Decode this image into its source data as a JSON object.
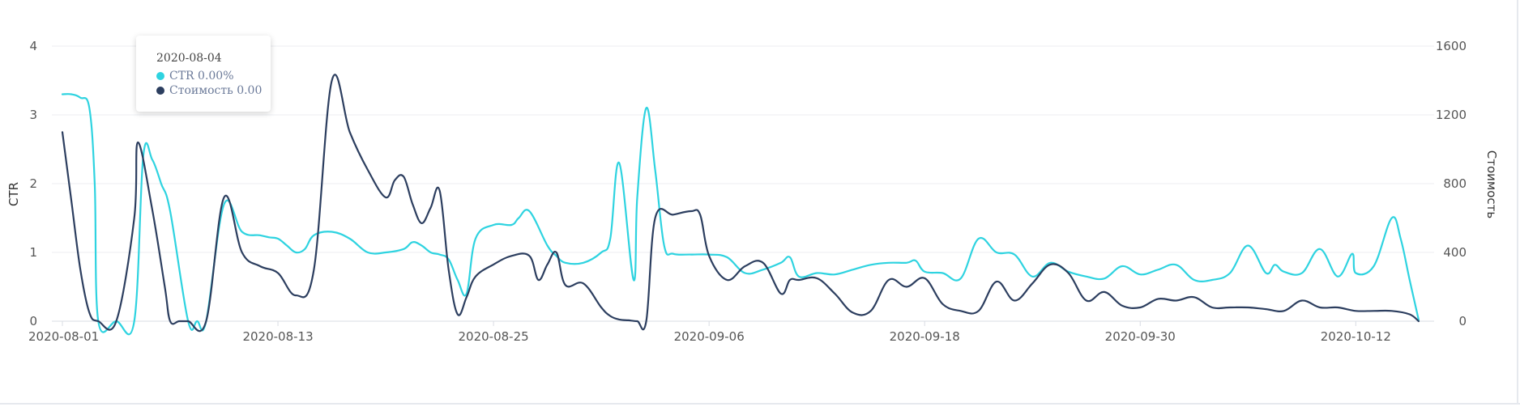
{
  "chart_data": {
    "type": "line",
    "x_range": [
      "2020-08-01",
      "2020-10-16"
    ],
    "x_ticks": [
      "2020-08-01",
      "2020-08-13",
      "2020-08-25",
      "2020-09-06",
      "2020-09-18",
      "2020-09-30",
      "2020-10-12"
    ],
    "y_left": {
      "label": "CTR",
      "range": [
        0,
        4
      ],
      "ticks": [
        "0",
        "1",
        "2",
        "3",
        "4"
      ]
    },
    "y_right": {
      "label": "Стоимость",
      "range": [
        0,
        1600
      ],
      "ticks": [
        "0",
        "400",
        "800",
        "1200",
        "1600"
      ]
    },
    "grid": true,
    "series": [
      {
        "name": "CTR",
        "axis": "left",
        "color": "#2ed3e0",
        "x": [
          0,
          0.5,
          1,
          1.5,
          1.8,
          2,
          3,
          4,
          4.5,
          5,
          5.5,
          6,
          7,
          7.5,
          8,
          9,
          10,
          11,
          11.5,
          12,
          12.5,
          13,
          13.5,
          14,
          15,
          16,
          17,
          18,
          19,
          19.5,
          20,
          20.5,
          21,
          21.5,
          22,
          22.5,
          23,
          24,
          25,
          25.4,
          26,
          27,
          27.5,
          28,
          29,
          30,
          30.5,
          31,
          31.8,
          32,
          32.5,
          33,
          33.5,
          34,
          35,
          36,
          37,
          38,
          39,
          40,
          40.5,
          41,
          42,
          43,
          44,
          45,
          46,
          47,
          47.5,
          48,
          49,
          50,
          51,
          52,
          53,
          54,
          55,
          56,
          57,
          58,
          59,
          60,
          61,
          62,
          63,
          64,
          65,
          66,
          67,
          67.5,
          68,
          69,
          70,
          71,
          71.8,
          72,
          73,
          74,
          74.5,
          75,
          75.5
        ],
        "values": [
          3.3,
          3.3,
          3.25,
          3.1,
          2.0,
          0,
          0,
          0,
          2.4,
          2.35,
          2.0,
          1.6,
          0,
          0,
          0,
          1.7,
          1.3,
          1.25,
          1.22,
          1.2,
          1.1,
          1.0,
          1.05,
          1.25,
          1.3,
          1.2,
          1.0,
          1.0,
          1.05,
          1.15,
          1.1,
          1.0,
          0.97,
          0.9,
          0.6,
          0.4,
          1.2,
          1.4,
          1.4,
          1.5,
          1.6,
          1.1,
          0.95,
          0.85,
          0.85,
          1.0,
          1.2,
          2.3,
          0.6,
          1.8,
          3.1,
          2.2,
          1.1,
          0.98,
          0.97,
          0.97,
          0.93,
          0.7,
          0.75,
          0.85,
          0.93,
          0.65,
          0.7,
          0.68,
          0.75,
          0.82,
          0.85,
          0.85,
          0.88,
          0.72,
          0.7,
          0.62,
          1.2,
          1.0,
          0.97,
          0.65,
          0.85,
          0.72,
          0.65,
          0.62,
          0.8,
          0.68,
          0.75,
          0.82,
          0.6,
          0.6,
          0.7,
          1.1,
          0.7,
          0.82,
          0.72,
          0.7,
          1.05,
          0.65,
          0.98,
          0.7,
          0.8,
          1.5,
          1.2,
          0.6,
          0.02
        ],
        "type": "line"
      },
      {
        "name": "Стоимость",
        "axis": "right",
        "color": "#2c3e5f",
        "x": [
          0,
          0.5,
          1,
          1.5,
          2,
          3,
          4,
          4.2,
          5,
          5.7,
          6,
          6.5,
          7,
          8,
          9,
          10,
          11,
          12,
          13,
          14,
          15,
          16,
          17,
          18,
          18.5,
          19,
          19.5,
          20,
          20.5,
          21,
          21.5,
          22,
          22.5,
          23,
          24,
          25,
          26,
          26.5,
          27,
          27.5,
          28,
          29,
          30,
          30.5,
          31,
          31.5,
          32,
          32.5,
          33,
          34,
          35,
          35.5,
          36,
          37,
          38,
          39,
          40,
          40.5,
          41,
          42,
          43,
          44,
          45,
          46,
          47,
          48,
          49,
          50,
          51,
          52,
          53,
          54,
          55,
          56,
          57,
          58,
          59,
          60,
          61,
          62,
          63,
          64,
          65,
          66,
          67,
          68,
          69,
          70,
          71,
          72,
          73,
          74,
          75,
          75.5
        ],
        "values": [
          1100,
          700,
          300,
          50,
          0,
          0,
          600,
          1040,
          650,
          200,
          0,
          0,
          0,
          0,
          720,
          400,
          320,
          280,
          150,
          300,
          1400,
          1100,
          880,
          720,
          820,
          840,
          680,
          570,
          660,
          760,
          300,
          40,
          140,
          260,
          330,
          380,
          380,
          240,
          330,
          400,
          210,
          220,
          80,
          30,
          10,
          5,
          0,
          0,
          600,
          620,
          640,
          620,
          380,
          240,
          320,
          340,
          160,
          240,
          240,
          250,
          160,
          50,
          60,
          240,
          200,
          250,
          100,
          60,
          60,
          230,
          120,
          220,
          330,
          280,
          120,
          170,
          90,
          80,
          130,
          120,
          140,
          80,
          80,
          80,
          70,
          60,
          120,
          80,
          80,
          60,
          60,
          60,
          40,
          0
        ],
        "type": "line"
      }
    ]
  },
  "tooltip": {
    "title": "2020-08-04",
    "rows": [
      {
        "label": "CTR 0.00%",
        "color": "#2ed3e0"
      },
      {
        "label": "Стоимость 0.00",
        "color": "#2c3e5f"
      }
    ]
  }
}
